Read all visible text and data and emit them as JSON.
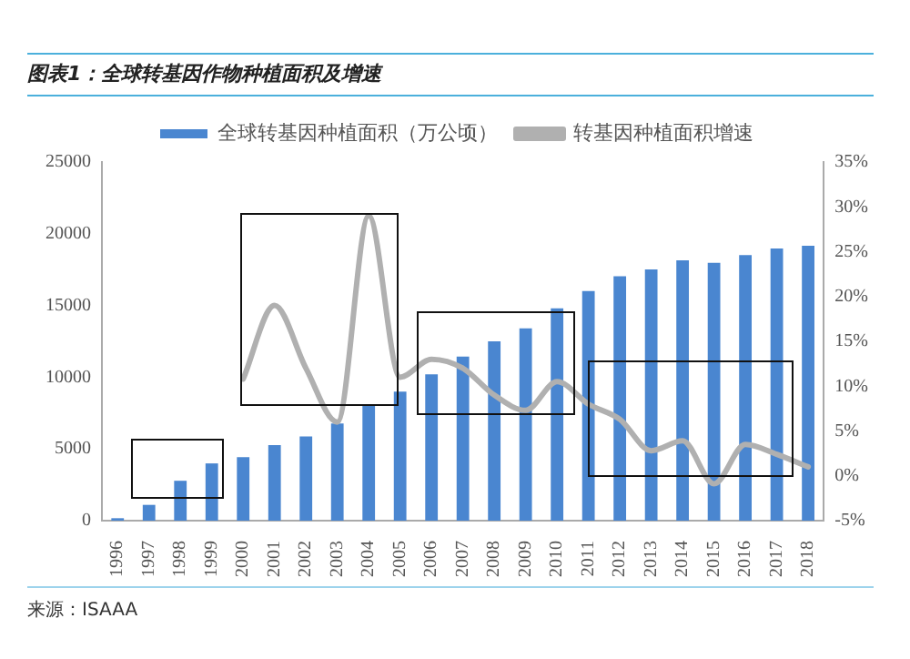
{
  "chart_data": {
    "type": "bar",
    "title": "图表1：全球转基因作物种植面积及增速",
    "categories": [
      "1996",
      "1997",
      "1998",
      "1999",
      "2000",
      "2001",
      "2002",
      "2003",
      "2004",
      "2005",
      "2006",
      "2007",
      "2008",
      "2009",
      "2010",
      "2011",
      "2012",
      "2013",
      "2014",
      "2015",
      "2016",
      "2017",
      "2018"
    ],
    "series": [
      {
        "name": "全球转基因种植面积（万公顷）",
        "color": "#4a86d0",
        "values": [
          170,
          1100,
          2780,
          3990,
          4420,
          5260,
          5870,
          6770,
          8100,
          9000,
          10200,
          11430,
          12500,
          13400,
          14800,
          16000,
          17030,
          17520,
          18150,
          17970,
          18510,
          18980,
          19170
        ]
      },
      {
        "name": "转基因种植面积增速",
        "type": "line",
        "axis": "y2",
        "color": "#b0b0b0",
        "values": [
          null,
          null,
          null,
          null,
          10.8,
          19,
          12,
          6,
          29,
          11,
          13,
          12,
          9,
          7.3,
          10.5,
          8,
          6.3,
          2.8,
          3.9,
          -0.9,
          3.5,
          2.4,
          1
        ]
      }
    ],
    "ylim": [
      0,
      25000
    ],
    "yticks": [
      0,
      5000,
      10000,
      15000,
      20000,
      25000
    ],
    "y2lim": [
      -5,
      35
    ],
    "y2ticks": [
      {
        "value": -5,
        "label": "-5%"
      },
      {
        "value": 0,
        "label": "0%"
      },
      {
        "value": 5,
        "label": "5%"
      },
      {
        "value": 10,
        "label": "10%"
      },
      {
        "value": 15,
        "label": "15%"
      },
      {
        "value": 20,
        "label": "20%"
      },
      {
        "value": 25,
        "label": "25%"
      },
      {
        "value": 30,
        "label": "30%"
      },
      {
        "value": 35,
        "label": "35%"
      }
    ],
    "legend": "top",
    "grid": false,
    "marker": "none",
    "annotations": [
      "来源：ISAAA"
    ]
  }
}
